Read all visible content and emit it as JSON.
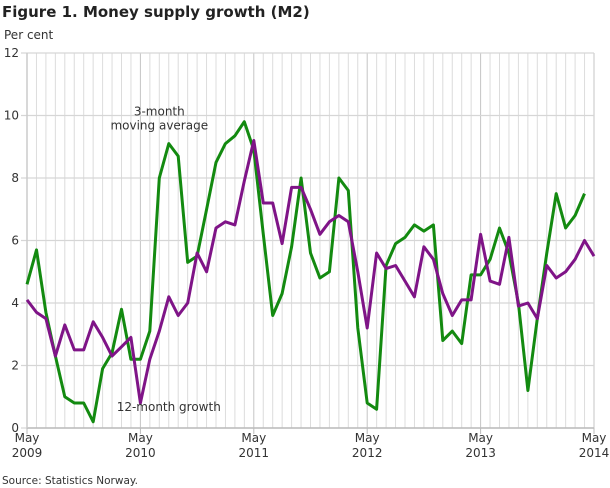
{
  "chart_data": {
    "type": "line",
    "title": "Figure 1. Money supply growth (M2)",
    "ylabel": "Per cent",
    "xlabel": "",
    "ylim": [
      0,
      12
    ],
    "yticks": [
      0,
      2,
      4,
      6,
      8,
      10,
      12
    ],
    "x_start": "May 2009",
    "x_end": "May 2014",
    "x_frequency": "monthly",
    "xticks": [
      {
        "month": "May",
        "year": "2009",
        "index": 0
      },
      {
        "month": "May",
        "year": "2010",
        "index": 12
      },
      {
        "month": "May",
        "year": "2011",
        "index": 24
      },
      {
        "month": "May",
        "year": "2012",
        "index": 36
      },
      {
        "month": "May",
        "year": "2013",
        "index": 48
      },
      {
        "month": "May",
        "year": "2014",
        "index": 60
      }
    ],
    "grid": true,
    "series": [
      {
        "name": "3-month moving average",
        "color": "#138a10",
        "values": [
          4.6,
          5.7,
          3.7,
          2.3,
          1.0,
          0.8,
          0.8,
          0.2,
          1.9,
          2.4,
          3.8,
          2.2,
          2.2,
          3.1,
          8.0,
          9.1,
          8.7,
          5.3,
          5.5,
          7.0,
          8.5,
          9.1,
          9.35,
          9.8,
          8.9,
          6.2,
          3.6,
          4.3,
          5.8,
          8.0,
          5.6,
          4.8,
          5.0,
          8.0,
          7.6,
          3.2,
          0.8,
          0.6,
          5.2,
          5.9,
          6.1,
          6.5,
          6.3,
          6.5,
          2.8,
          3.1,
          2.7,
          4.9,
          4.9,
          5.4,
          6.4,
          5.6,
          4.0,
          1.2,
          3.5,
          5.6,
          7.5,
          6.4,
          6.8,
          7.5
        ]
      },
      {
        "name": "12-month growth",
        "color": "#7f1487",
        "values": [
          4.1,
          3.7,
          3.5,
          2.3,
          3.3,
          2.5,
          2.5,
          3.4,
          2.9,
          2.3,
          2.6,
          2.9,
          0.8,
          2.2,
          3.1,
          4.2,
          3.6,
          4.0,
          5.6,
          5.0,
          6.4,
          6.6,
          6.5,
          7.9,
          9.2,
          7.2,
          7.2,
          5.9,
          7.7,
          7.7,
          7.0,
          6.2,
          6.6,
          6.8,
          6.6,
          5.0,
          3.2,
          5.6,
          5.1,
          5.2,
          4.7,
          4.2,
          5.8,
          5.4,
          4.3,
          3.6,
          4.1,
          4.1,
          6.2,
          4.7,
          4.6,
          6.1,
          3.9,
          4.0,
          3.5,
          5.2,
          4.8,
          5.0,
          5.4,
          6.0,
          5.5
        ]
      }
    ],
    "annotations": [
      {
        "lines": [
          "3-month",
          "moving average"
        ],
        "series": "3-month moving average"
      },
      {
        "lines": [
          "12-month growth"
        ],
        "series": "12-month growth"
      }
    ],
    "legend": "none",
    "source": "Source: Statistics Norway."
  }
}
